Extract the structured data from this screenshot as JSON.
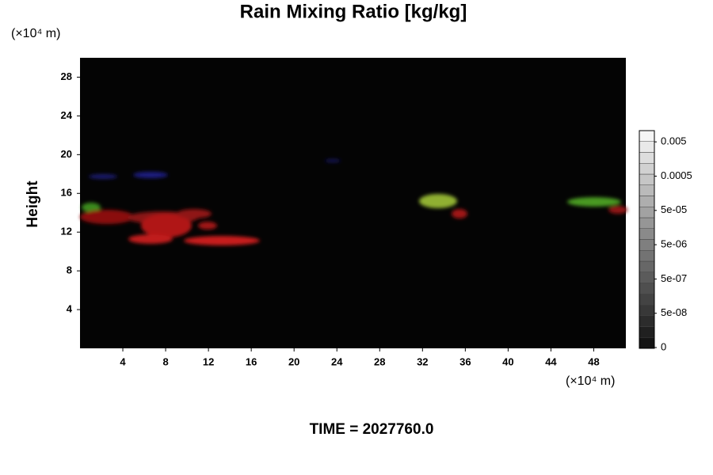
{
  "chart_data": {
    "type": "heatmap",
    "title": "Rain Mixing Ratio [kg/kg]",
    "ylabel": "Height",
    "x_unit": "(×10⁴ m)",
    "y_unit": "(×10⁴ m)",
    "footer": "TIME = 2027760.0",
    "xlim": [
      0,
      51
    ],
    "ylim": [
      0,
      30
    ],
    "xticks": [
      4,
      8,
      12,
      16,
      20,
      24,
      28,
      32,
      36,
      40,
      44,
      48
    ],
    "yticks": [
      4,
      8,
      12,
      16,
      20,
      24,
      28
    ],
    "colorbar": {
      "scale": "log",
      "ticks": [
        0,
        {
          "value": 5e-08,
          "label": "5e-08"
        },
        {
          "value": 5e-07,
          "label": "5e-07"
        },
        {
          "value": 5e-06,
          "label": "5e-06"
        },
        {
          "value": 5e-05,
          "label": "5e-05"
        },
        0.0005,
        0.005
      ]
    }
  }
}
